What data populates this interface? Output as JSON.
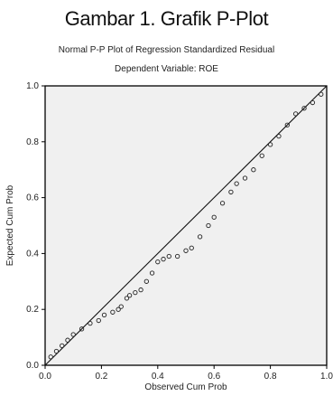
{
  "caption": "Gambar 1. Grafik P-Plot",
  "chart_data": {
    "type": "scatter",
    "title": "Normal P-P Plot of Regression Standardized Residual",
    "subtitle": "Dependent Variable: ROE",
    "xlabel": "Observed Cum Prob",
    "ylabel": "Expected Cum Prob",
    "xlim": [
      0,
      1
    ],
    "ylim": [
      0,
      1
    ],
    "xticks": [
      "0.0",
      "0.2",
      "0.4",
      "0.6",
      "0.8",
      "1.0"
    ],
    "yticks": [
      "0.0",
      "0.2",
      "0.4",
      "0.6",
      "0.8",
      "1.0"
    ],
    "grid": false,
    "background": "#f0f0f0",
    "point_color": "#222222",
    "reference_line": [
      [
        0,
        0
      ],
      [
        1,
        1
      ]
    ],
    "points": [
      [
        0.02,
        0.03
      ],
      [
        0.04,
        0.05
      ],
      [
        0.06,
        0.07
      ],
      [
        0.08,
        0.09
      ],
      [
        0.1,
        0.11
      ],
      [
        0.13,
        0.13
      ],
      [
        0.16,
        0.15
      ],
      [
        0.19,
        0.16
      ],
      [
        0.21,
        0.18
      ],
      [
        0.24,
        0.19
      ],
      [
        0.26,
        0.2
      ],
      [
        0.27,
        0.21
      ],
      [
        0.29,
        0.24
      ],
      [
        0.3,
        0.25
      ],
      [
        0.32,
        0.26
      ],
      [
        0.34,
        0.27
      ],
      [
        0.36,
        0.3
      ],
      [
        0.38,
        0.33
      ],
      [
        0.4,
        0.37
      ],
      [
        0.42,
        0.38
      ],
      [
        0.44,
        0.39
      ],
      [
        0.47,
        0.39
      ],
      [
        0.5,
        0.41
      ],
      [
        0.52,
        0.42
      ],
      [
        0.55,
        0.46
      ],
      [
        0.58,
        0.5
      ],
      [
        0.6,
        0.53
      ],
      [
        0.63,
        0.58
      ],
      [
        0.66,
        0.62
      ],
      [
        0.68,
        0.65
      ],
      [
        0.71,
        0.67
      ],
      [
        0.74,
        0.7
      ],
      [
        0.77,
        0.75
      ],
      [
        0.8,
        0.79
      ],
      [
        0.83,
        0.82
      ],
      [
        0.86,
        0.86
      ],
      [
        0.89,
        0.9
      ],
      [
        0.92,
        0.92
      ],
      [
        0.95,
        0.94
      ],
      [
        0.98,
        0.97
      ]
    ]
  }
}
